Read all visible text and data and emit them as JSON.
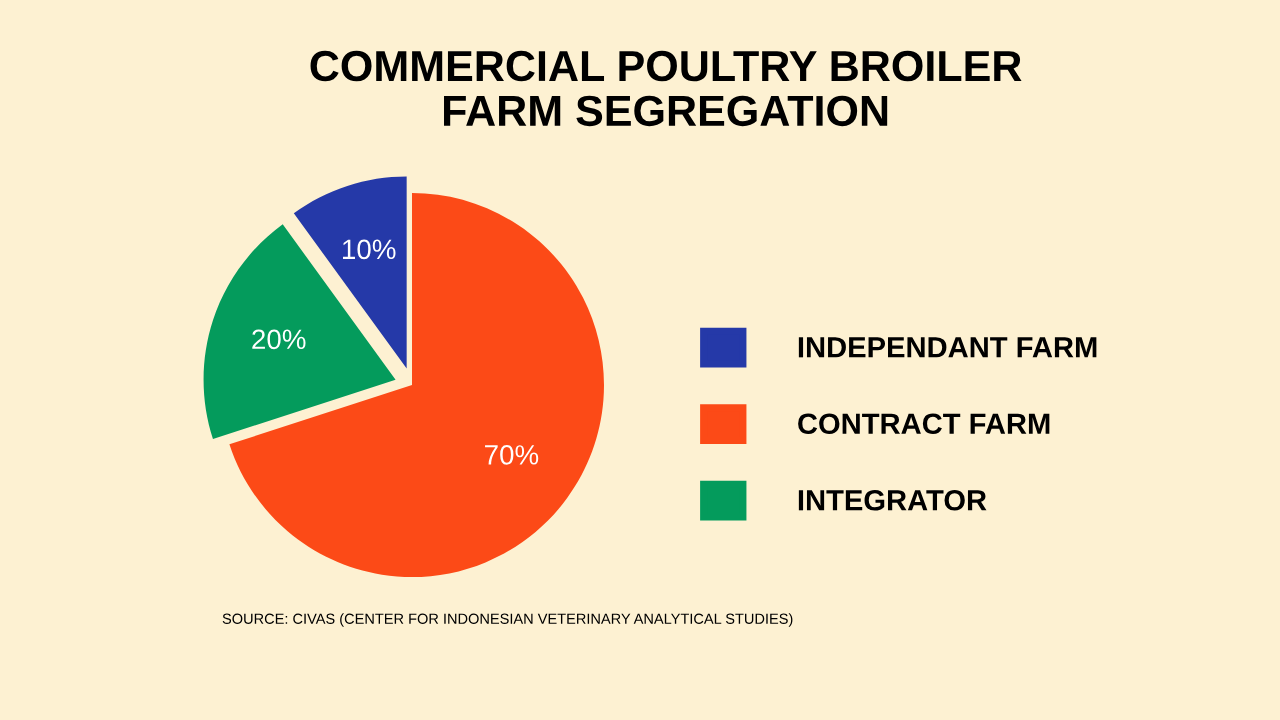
{
  "chart_data": {
    "type": "pie",
    "title": "COMMERCIAL POULTRY BROILER\nFARM SEGREGATION",
    "categories": [
      "INDEPENDANT FARM",
      "CONTRACT FARM",
      "INTEGRATOR"
    ],
    "values": [
      10,
      70,
      20
    ],
    "colors": [
      "#2539a8",
      "#fc4a17",
      "#049b5c"
    ],
    "value_labels": [
      "10%",
      "70%",
      "20%"
    ],
    "legend": "right",
    "annotations": [
      "SOURCE: CIVAS (CENTER FOR INDONESIAN VETERINARY ANALYTICAL STUDIES)"
    ]
  }
}
